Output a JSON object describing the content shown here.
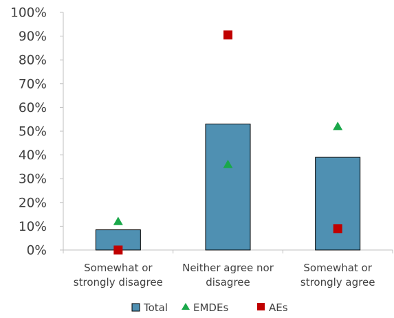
{
  "chart_data": {
    "type": "bar",
    "categories": [
      [
        "Somewhat or",
        "strongly disagree"
      ],
      [
        "Neither agree nor",
        "disagree"
      ],
      [
        "Somewhat or",
        "strongly agree"
      ]
    ],
    "series": [
      {
        "name": "Total",
        "kind": "bar",
        "marker": "square",
        "color": "#4f90b2",
        "values": [
          8.5,
          53,
          39
        ]
      },
      {
        "name": "EMDEs",
        "kind": "marker",
        "marker": "triangle",
        "color": "#1aa84a",
        "values": [
          12,
          36,
          52
        ]
      },
      {
        "name": "AEs",
        "kind": "marker",
        "marker": "square",
        "color": "#c00000",
        "values": [
          0,
          90.5,
          9
        ]
      }
    ],
    "ylim": [
      0,
      100
    ],
    "yticks": [
      "0%",
      "10%",
      "20%",
      "30%",
      "40%",
      "50%",
      "60%",
      "70%",
      "80%",
      "90%",
      "100%"
    ],
    "ytick_values": [
      0,
      10,
      20,
      30,
      40,
      50,
      60,
      70,
      80,
      90,
      100
    ],
    "legend_position": "bottom",
    "grid": false
  }
}
